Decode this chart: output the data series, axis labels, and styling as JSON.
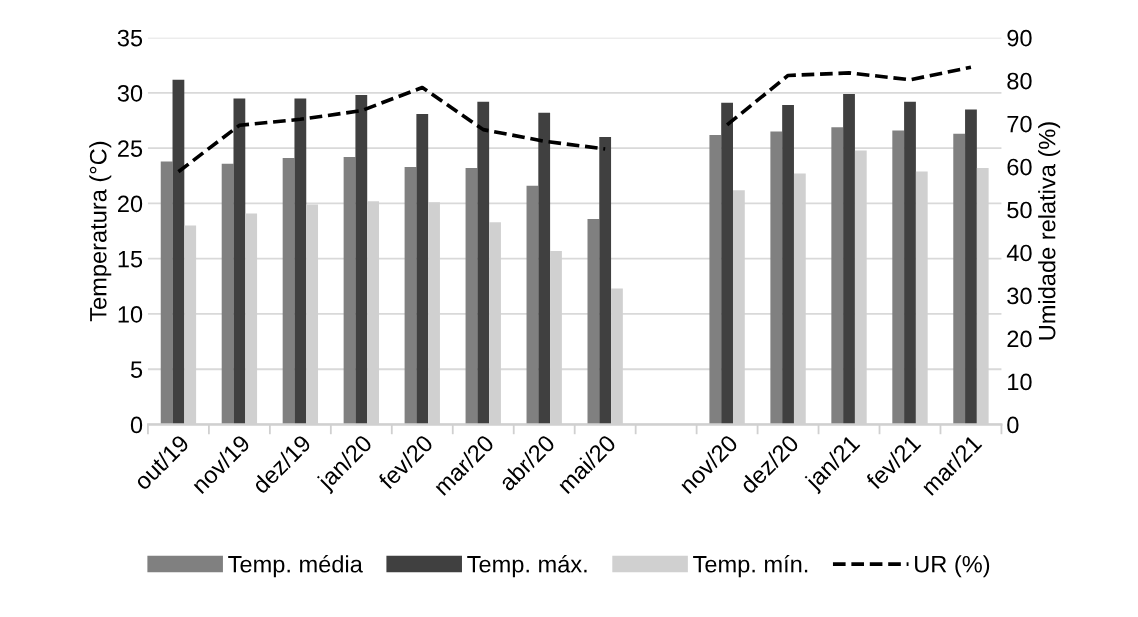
{
  "chart_data": {
    "type": "bar",
    "ylabel": "Temperatura (°C)",
    "y2label": "Umidade relativa (%)",
    "categories": [
      "out/19",
      "nov/19",
      "dez/19",
      "jan/20",
      "fev/20",
      "mar/20",
      "abr/20",
      "mai/20",
      null,
      "nov/20",
      "dez/20",
      "jan/21",
      "fev/21",
      "mar/21"
    ],
    "series": [
      {
        "name": "Temp. média",
        "color": "#808080",
        "values": [
          23.8,
          23.6,
          24.1,
          24.2,
          23.3,
          23.2,
          21.6,
          18.6,
          null,
          26.2,
          26.5,
          26.9,
          26.6,
          26.3
        ]
      },
      {
        "name": "Temp. máx.",
        "color": "#404040",
        "values": [
          31.2,
          29.5,
          29.5,
          29.8,
          28.1,
          29.2,
          28.2,
          26.0,
          null,
          29.1,
          28.9,
          29.9,
          29.2,
          28.5
        ]
      },
      {
        "name": "Temp. mín.",
        "color": "#d0d0d0",
        "values": [
          18.0,
          19.1,
          19.9,
          20.2,
          20.1,
          18.3,
          15.7,
          12.3,
          null,
          21.2,
          22.7,
          24.8,
          22.9,
          23.2
        ]
      },
      {
        "name": "UR (%)",
        "type": "line",
        "axis": "y2",
        "color": "#000000",
        "line_style": "dashed",
        "values": [
          58.8,
          69.6,
          71.0,
          73.0,
          78.4,
          68.6,
          65.9,
          64.1,
          null,
          69.7,
          81.2,
          81.8,
          80.2,
          83.1
        ]
      }
    ],
    "ylim": [
      0,
      35
    ],
    "yticks": [
      0,
      5,
      10,
      15,
      20,
      25,
      30,
      35
    ],
    "y2lim": [
      0,
      90
    ],
    "y2ticks": [
      0,
      10,
      20,
      30,
      40,
      50,
      60,
      70,
      80,
      90
    ],
    "grid": "y",
    "legend": "bottom"
  }
}
